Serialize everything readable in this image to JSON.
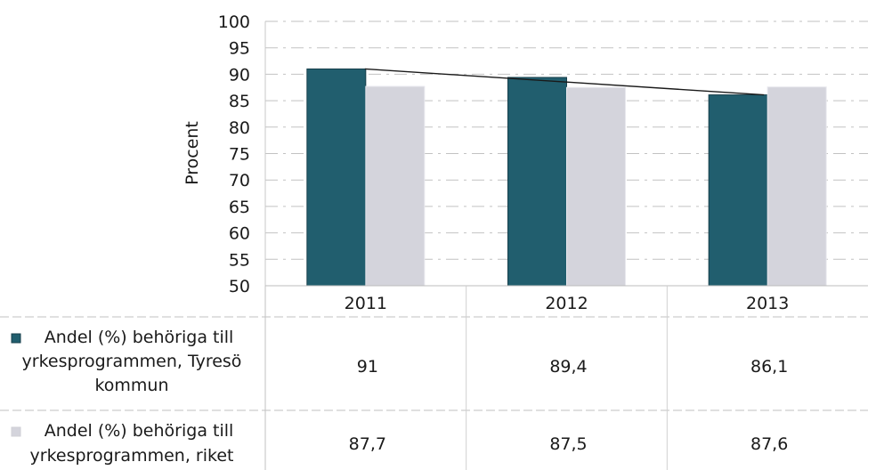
{
  "chart_data": {
    "type": "bar",
    "title": "",
    "xlabel": "",
    "ylabel": "Procent",
    "ylim": [
      50,
      100
    ],
    "yticks": [
      "100",
      "95",
      "90",
      "85",
      "80",
      "75",
      "70",
      "65",
      "60",
      "55",
      "50"
    ],
    "categories": [
      "2011",
      "2012",
      "2013"
    ],
    "grid": true,
    "legend": "data-table",
    "series": [
      {
        "name_lines": [
          "Andel (%) behöriga till",
          "yrkesprogrammen, Tyresö",
          "kommun"
        ],
        "values": [
          91,
          89.4,
          86.1
        ],
        "labels": [
          "91",
          "89,4",
          "86,1"
        ],
        "color": "#215e6e",
        "trendline": true
      },
      {
        "name_lines": [
          "Andel (%) behöriga till",
          "yrkesprogrammen, riket"
        ],
        "values": [
          87.7,
          87.5,
          87.6
        ],
        "labels": [
          "87,7",
          "87,5",
          "87,6"
        ],
        "color": "#d4d4dc"
      }
    ]
  }
}
